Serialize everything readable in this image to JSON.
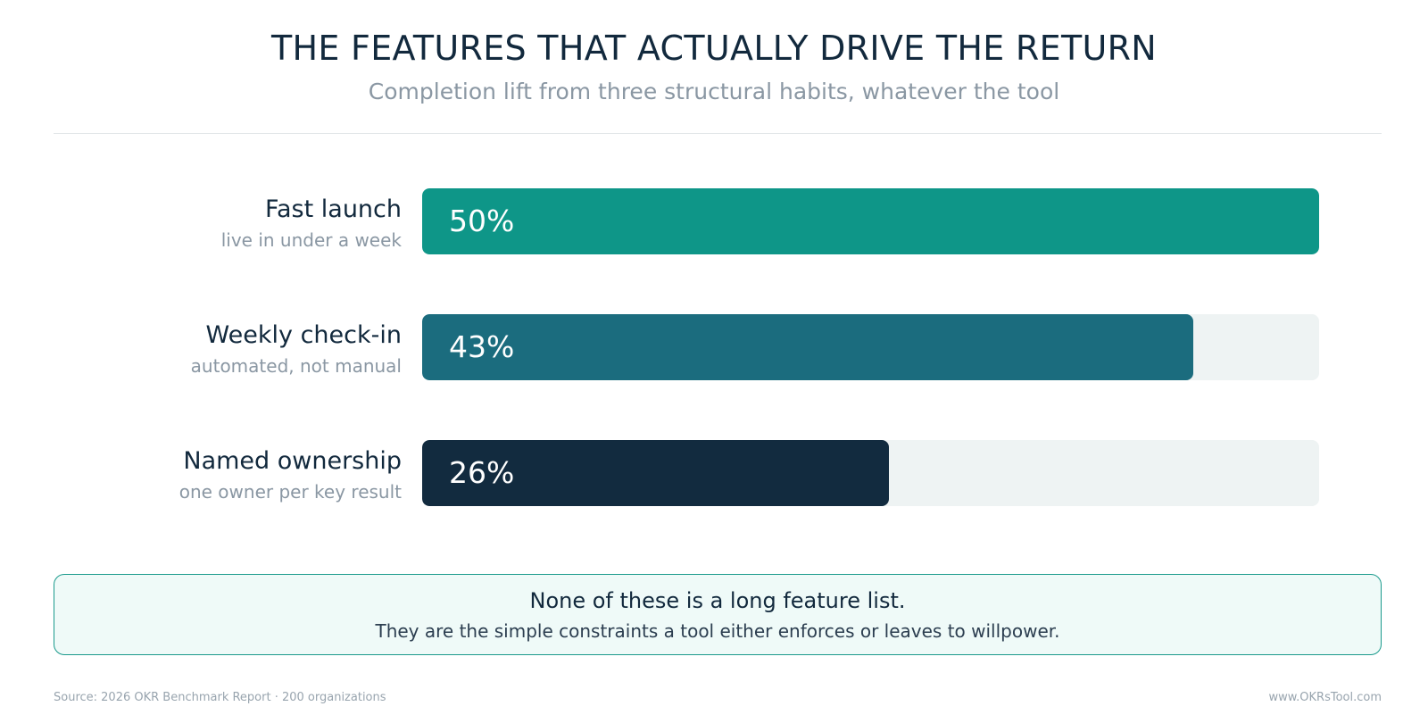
{
  "header": {
    "title": "THE FEATURES THAT ACTUALLY DRIVE THE RETURN",
    "subtitle": "Completion lift from three structural habits, whatever the tool"
  },
  "chart_data": {
    "type": "bar",
    "orientation": "horizontal",
    "categories": [
      "Fast launch",
      "Weekly check-in",
      "Named ownership"
    ],
    "descriptions": [
      "live in under a week",
      "automated, not manual",
      "one owner per key result"
    ],
    "values": [
      50,
      43,
      26
    ],
    "value_labels": [
      "50%",
      "43%",
      "26%"
    ],
    "xlim": [
      0,
      50
    ],
    "colors": [
      "#0e9688",
      "#1b6c7e",
      "#122b3f"
    ],
    "track_color": "#eef3f3",
    "grid": false
  },
  "callout": {
    "headline": "None of these is a long feature list.",
    "body": "They are the simple constraints a tool either enforces or leaves to willpower."
  },
  "footer": {
    "source": "Source: 2026 OKR Benchmark Report · 200 organizations",
    "site": "www.OKRsTool.com"
  }
}
